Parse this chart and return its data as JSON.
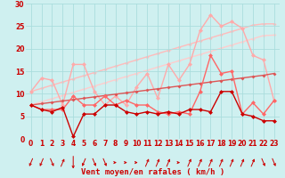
{
  "x": [
    0,
    1,
    2,
    3,
    4,
    5,
    6,
    7,
    8,
    9,
    10,
    11,
    12,
    13,
    14,
    15,
    16,
    17,
    18,
    19,
    20,
    21,
    22,
    23
  ],
  "series": [
    {
      "name": "rafales_top",
      "y": [
        10.5,
        13.5,
        13.0,
        7.5,
        16.5,
        16.5,
        10.5,
        7.5,
        9.5,
        7.5,
        11.5,
        14.5,
        9.0,
        16.5,
        13.0,
        16.5,
        24.0,
        27.5,
        25.0,
        26.0,
        24.5,
        18.5,
        17.5,
        8.5
      ],
      "color": "#ffaaaa",
      "lw": 1.0,
      "marker": "D",
      "ms": 2.5,
      "zorder": 2
    },
    {
      "name": "trend_top1",
      "y": [
        10.5,
        11.2,
        11.9,
        12.6,
        13.3,
        14.0,
        14.7,
        15.4,
        16.1,
        16.8,
        17.5,
        18.2,
        18.9,
        19.6,
        20.3,
        21.0,
        21.7,
        22.4,
        23.1,
        23.8,
        24.5,
        25.2,
        25.5,
        25.5
      ],
      "color": "#ffbbbb",
      "lw": 1.0,
      "marker": "D",
      "ms": 2.0,
      "zorder": 1
    },
    {
      "name": "trend_top2",
      "y": [
        7.5,
        8.2,
        8.9,
        9.6,
        10.3,
        11.0,
        11.7,
        12.4,
        13.1,
        13.8,
        14.5,
        15.2,
        15.9,
        16.6,
        17.3,
        18.0,
        18.7,
        19.4,
        20.1,
        20.8,
        21.5,
        22.2,
        22.9,
        23.0
      ],
      "color": "#ffcccc",
      "lw": 1.0,
      "marker": "D",
      "ms": 2.0,
      "zorder": 1
    },
    {
      "name": "rafales_mid",
      "y": [
        7.5,
        6.5,
        6.5,
        6.5,
        9.5,
        7.5,
        7.5,
        9.5,
        7.5,
        8.5,
        7.5,
        7.5,
        6.0,
        5.5,
        6.0,
        5.5,
        10.5,
        18.5,
        14.5,
        15.0,
        5.5,
        8.0,
        5.5,
        8.5
      ],
      "color": "#ff6666",
      "lw": 1.0,
      "marker": "D",
      "ms": 2.5,
      "zorder": 3
    },
    {
      "name": "trend_mid",
      "y": [
        7.5,
        7.8,
        8.1,
        8.4,
        8.7,
        9.0,
        9.3,
        9.6,
        9.9,
        10.2,
        10.5,
        10.8,
        11.1,
        11.4,
        11.7,
        12.0,
        12.3,
        12.6,
        12.9,
        13.2,
        13.5,
        13.8,
        14.1,
        14.5
      ],
      "color": "#dd5555",
      "lw": 1.0,
      "marker": "D",
      "ms": 2.0,
      "zorder": 2
    },
    {
      "name": "vent_moyen",
      "y": [
        7.5,
        6.5,
        6.0,
        7.0,
        0.5,
        5.5,
        5.5,
        7.5,
        7.5,
        6.0,
        5.5,
        6.0,
        5.5,
        6.0,
        5.5,
        6.5,
        6.5,
        6.0,
        10.5,
        10.5,
        5.5,
        5.0,
        4.0,
        4.0
      ],
      "color": "#cc0000",
      "lw": 1.0,
      "marker": "D",
      "ms": 2.5,
      "zorder": 4
    }
  ],
  "wind_arrows": {
    "angles_deg": [
      225,
      225,
      135,
      45,
      180,
      225,
      135,
      135,
      90,
      90,
      90,
      45,
      45,
      45,
      90,
      45,
      45,
      45,
      45,
      45,
      45,
      45,
      135,
      135
    ],
    "color": "#cc0000"
  },
  "xlabel": "Vent moyen/en rafales ( km/h )",
  "xlim": [
    -0.5,
    23.5
  ],
  "ylim": [
    0,
    30
  ],
  "yticks": [
    0,
    5,
    10,
    15,
    20,
    25,
    30
  ],
  "xticks": [
    0,
    1,
    2,
    3,
    4,
    5,
    6,
    7,
    8,
    9,
    10,
    11,
    12,
    13,
    14,
    15,
    16,
    17,
    18,
    19,
    20,
    21,
    22,
    23
  ],
  "bg_color": "#cff0f0",
  "grid_color": "#aadddd",
  "label_color": "#cc0000"
}
